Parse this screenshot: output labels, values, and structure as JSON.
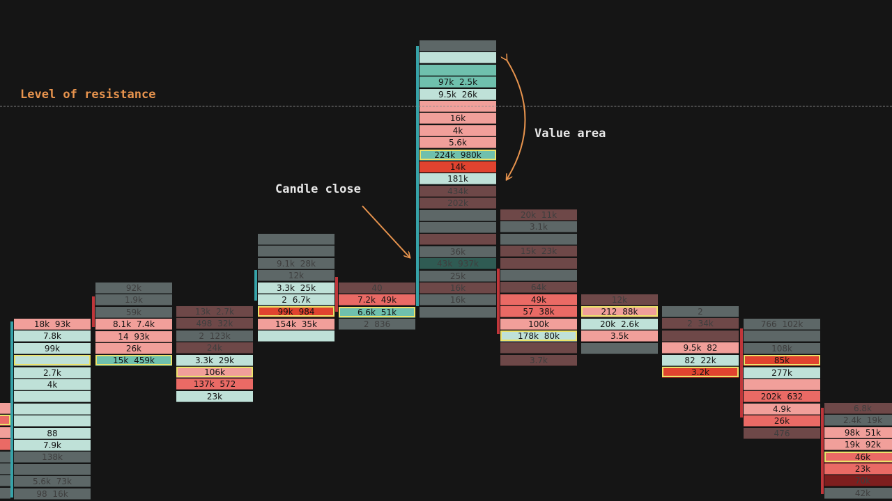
{
  "annotations": {
    "resistance": "Level of resistance",
    "value_area": "Value area",
    "candle_close": "Candle close"
  },
  "colors": {
    "background": "#151515",
    "accent_orange": "#e8944e",
    "poc_outline": "#ece36a"
  },
  "chart_data": {
    "type": "table",
    "description_of_values": "footprint candles: each row shows bid x ask volume at a price level",
    "candles": [
      {
        "wick": "red",
        "rows": [
          {
            "t": "",
            "c": "p"
          },
          {
            "t": "",
            "c": "r",
            "poc": true
          },
          {
            "t": "",
            "c": "p"
          },
          {
            "t": "",
            "c": "r"
          },
          {
            "t": "",
            "c": "g"
          },
          {
            "t": "",
            "c": "g"
          },
          {
            "t": "",
            "c": "dg"
          },
          {
            "t": "",
            "c": "dg"
          }
        ]
      },
      {
        "wick": "teal",
        "rows": [
          {
            "t": "18k  93k",
            "c": "p"
          },
          {
            "t": "7.8k",
            "c": "lt"
          },
          {
            "t": "99k",
            "c": "lt"
          },
          {
            "t": "",
            "c": "lt",
            "poc": true
          },
          {
            "t": "2.7k",
            "c": "lt"
          },
          {
            "t": "4k",
            "c": "lt"
          },
          {
            "t": "",
            "c": "lt"
          },
          {
            "t": "",
            "c": "lt"
          },
          {
            "t": "",
            "c": "lt"
          },
          {
            "t": "88",
            "c": "lt"
          },
          {
            "t": "7.9k",
            "c": "lt"
          },
          {
            "t": "138k",
            "c": "g"
          },
          {
            "t": "",
            "c": "g"
          },
          {
            "t": "5.6k  73k",
            "c": "g"
          },
          {
            "t": "98  16k",
            "c": "g"
          }
        ]
      },
      {
        "wick": "red",
        "rows": [
          {
            "t": "92k",
            "c": "g"
          },
          {
            "t": "1.9k",
            "c": "g"
          },
          {
            "t": "59k",
            "c": "g"
          },
          {
            "t": "8.1k  7.4k",
            "c": "p"
          },
          {
            "t": "14  93k",
            "c": "p"
          },
          {
            "t": "26k",
            "c": "p"
          },
          {
            "t": "15k  459k",
            "c": "t",
            "poc": true
          }
        ]
      },
      {
        "wick": "none",
        "rows": [
          {
            "t": "13k  2.7k",
            "c": "dr"
          },
          {
            "t": "498  32k",
            "c": "dr"
          },
          {
            "t": "2  123k",
            "c": "g"
          },
          {
            "t": "24k",
            "c": "dr"
          },
          {
            "t": "3.3k  29k",
            "c": "lt"
          },
          {
            "t": "106k",
            "c": "p",
            "poc": true
          },
          {
            "t": "137k  572",
            "c": "r"
          },
          {
            "t": "23k",
            "c": "lt"
          }
        ]
      },
      {
        "wick": "teal",
        "rows": [
          {
            "t": "",
            "c": "g"
          },
          {
            "t": "",
            "c": "g"
          },
          {
            "t": "9.1k  28k",
            "c": "g"
          },
          {
            "t": "12k",
            "c": "g"
          },
          {
            "t": "3.3k  25k",
            "c": "lt"
          },
          {
            "t": "2  6.7k",
            "c": "lt"
          },
          {
            "t": "99k  984",
            "c": "br",
            "poc": true
          },
          {
            "t": "154k  35k",
            "c": "p"
          },
          {
            "t": "",
            "c": "lt"
          }
        ]
      },
      {
        "wick": "red",
        "rows": [
          {
            "t": "40",
            "c": "dr"
          },
          {
            "t": "7.2k  49k",
            "c": "r"
          },
          {
            "t": "6.6k  51k",
            "c": "t",
            "poc": true
          },
          {
            "t": "2  836",
            "c": "g"
          }
        ]
      },
      {
        "wick": "teal",
        "rows": [
          {
            "t": "",
            "c": "g"
          },
          {
            "t": "",
            "c": "lt"
          },
          {
            "t": "",
            "c": "t"
          },
          {
            "t": "97k  2.5k",
            "c": "t"
          },
          {
            "t": "9.5k  26k",
            "c": "lt"
          },
          {
            "t": "",
            "c": "p"
          },
          {
            "t": "16k",
            "c": "p"
          },
          {
            "t": "4k",
            "c": "p"
          },
          {
            "t": "5.6k",
            "c": "p"
          },
          {
            "t": "224k  980k",
            "c": "t",
            "poc": true
          },
          {
            "t": "14k",
            "c": "br"
          },
          {
            "t": "181k",
            "c": "lt"
          },
          {
            "t": "434k",
            "c": "dr"
          },
          {
            "t": "202k",
            "c": "dr"
          },
          {
            "t": "",
            "c": "g"
          },
          {
            "t": "",
            "c": "g"
          },
          {
            "t": "",
            "c": "dr"
          },
          {
            "t": "36k",
            "c": "g"
          },
          {
            "t": "43k  937k",
            "c": "dt"
          },
          {
            "t": "25k",
            "c": "g"
          },
          {
            "t": "16k",
            "c": "dr"
          },
          {
            "t": "16k",
            "c": "g"
          },
          {
            "t": "",
            "c": "g"
          }
        ]
      },
      {
        "wick": "red",
        "rows": [
          {
            "t": "20k  11k",
            "c": "dr"
          },
          {
            "t": "3.1k",
            "c": "g"
          },
          {
            "t": "",
            "c": "g"
          },
          {
            "t": "15k  23k",
            "c": "dr"
          },
          {
            "t": "",
            "c": "dr"
          },
          {
            "t": "",
            "c": "g"
          },
          {
            "t": "64k",
            "c": "dr"
          },
          {
            "t": "49k",
            "c": "r"
          },
          {
            "t": "57  38k",
            "c": "r"
          },
          {
            "t": "100k",
            "c": "p"
          },
          {
            "t": "178k  80k",
            "c": "lt",
            "poc": true
          },
          {
            "t": "",
            "c": "dr"
          },
          {
            "t": "3.7k",
            "c": "dr"
          }
        ]
      },
      {
        "wick": "none",
        "rows": [
          {
            "t": "12k",
            "c": "dr"
          },
          {
            "t": "212  88k",
            "c": "p",
            "poc": true
          },
          {
            "t": "20k  2.6k",
            "c": "lt"
          },
          {
            "t": "3.5k",
            "c": "p"
          },
          {
            "t": "",
            "c": "g"
          }
        ]
      },
      {
        "wick": "none",
        "rows": [
          {
            "t": "2",
            "c": "g"
          },
          {
            "t": "2  34k",
            "c": "dr"
          },
          {
            "t": "",
            "c": "dr"
          },
          {
            "t": "9.5k  82",
            "c": "p"
          },
          {
            "t": "82  22k",
            "c": "lt"
          },
          {
            "t": "3.2k",
            "c": "br",
            "poc": true
          }
        ]
      },
      {
        "wick": "red",
        "rows": [
          {
            "t": "766  102k",
            "c": "g"
          },
          {
            "t": "",
            "c": "g"
          },
          {
            "t": "108k",
            "c": "g"
          },
          {
            "t": "85k",
            "c": "br",
            "poc": true
          },
          {
            "t": "277k",
            "c": "lt"
          },
          {
            "t": "",
            "c": "p"
          },
          {
            "t": "202k  632",
            "c": "r"
          },
          {
            "t": "4.9k",
            "c": "p"
          },
          {
            "t": "26k",
            "c": "r"
          },
          {
            "t": "476",
            "c": "dr"
          }
        ]
      },
      {
        "wick": "red",
        "rows": [
          {
            "t": "6.8k",
            "c": "dr"
          },
          {
            "t": "2.4k  19k",
            "c": "g"
          },
          {
            "t": "98k  51k",
            "c": "p"
          },
          {
            "t": "19k  92k",
            "c": "p"
          },
          {
            "t": "46k",
            "c": "r",
            "poc": true
          },
          {
            "t": "23k",
            "c": "r"
          },
          {
            "t": "70k",
            "c": "mr"
          },
          {
            "t": "42k",
            "c": "g"
          }
        ]
      }
    ]
  }
}
